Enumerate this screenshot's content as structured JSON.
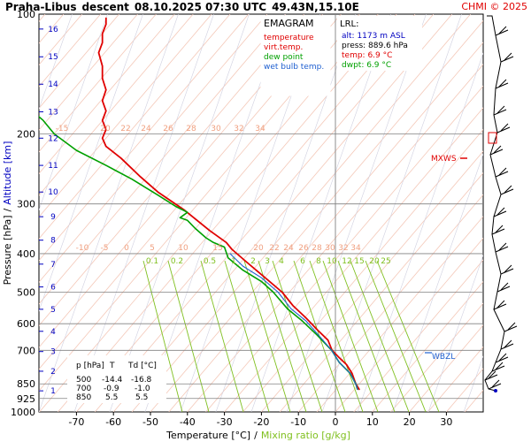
{
  "header": {
    "station": "Praha-Libus",
    "mode": "descent",
    "datetime": "08.10.2025 07:30 UTC",
    "coords": "49.43N,15.10E",
    "copyright": "CHMI © 2025"
  },
  "legend": {
    "title": "EMAGRAM",
    "items": [
      {
        "label": "temperature",
        "color": "#e00000"
      },
      {
        "label": "virt.temp.",
        "color": "#e00000"
      },
      {
        "label": "dew point",
        "color": "#00a000"
      },
      {
        "label": "wet bulb temp.",
        "color": "#2060d0"
      }
    ]
  },
  "lrl": {
    "title": "LRL:",
    "alt": "alt: 1173 m ASL",
    "press": "press: 889.6 hPa",
    "temp": "temp: 6.9 °C",
    "dwpt": "dwpt: 6.9 °C"
  },
  "table": {
    "headers": [
      "p [hPa]",
      "T",
      "Td [°C]"
    ],
    "rows": [
      [
        "500",
        "-14.4",
        "-16.8"
      ],
      [
        "700",
        "-0.9",
        "-1.0"
      ],
      [
        "850",
        "5.5",
        "5.5"
      ]
    ]
  },
  "markers": {
    "mxws": "MXWS",
    "wbzl": "WBZL"
  },
  "axes": {
    "xlabel": "Temperature [°C]",
    "xlabel_sep": "/",
    "xlabel2": "Mixing ratio [g/kg]",
    "ylabel": "Pressure [hPa]",
    "ylabel_sep": "/",
    "ylabel2": "Altitude [km]"
  },
  "colors": {
    "temperature": "#e00000",
    "dewpoint": "#00a000",
    "wetbulb": "#2060d0",
    "isotherm_label": "#f0a080",
    "mixing": "#80c020",
    "altitude": "#0000c0"
  },
  "chart_data": {
    "type": "line",
    "xlim": [
      -80,
      40
    ],
    "ylim": [
      1000,
      100
    ],
    "y_scale": "log",
    "pressure_ticks": [
      100,
      200,
      300,
      400,
      500,
      600,
      700,
      850,
      925,
      1000
    ],
    "temp_ticks": [
      -70,
      -60,
      -50,
      -40,
      -30,
      -20,
      -10,
      0,
      10,
      20,
      30
    ],
    "altitude_ticks": [
      {
        "km": "1",
        "p": 885
      },
      {
        "km": "2",
        "p": 790
      },
      {
        "km": "3",
        "p": 705
      },
      {
        "km": "4",
        "p": 627
      },
      {
        "km": "5",
        "p": 552
      },
      {
        "km": "6",
        "p": 485
      },
      {
        "km": "7",
        "p": 425
      },
      {
        "km": "8",
        "p": 370
      },
      {
        "km": "9",
        "p": 323
      },
      {
        "km": "10",
        "p": 280
      },
      {
        "km": "11",
        "p": 240
      },
      {
        "km": "12",
        "p": 205
      },
      {
        "km": "13",
        "p": 176
      },
      {
        "km": "14",
        "p": 150
      },
      {
        "km": "15",
        "p": 128
      },
      {
        "km": "16",
        "p": 109
      }
    ],
    "mixing_ratio_labels": [
      "0.1",
      "0.2",
      "0.5",
      "1",
      "2",
      "3",
      "4",
      "6",
      "8",
      "10",
      "12",
      "15",
      "20",
      "25"
    ],
    "series": [
      {
        "name": "temperature",
        "points": [
          [
            6.5,
            880
          ],
          [
            5.5,
            850
          ],
          [
            4.5,
            800
          ],
          [
            3,
            760
          ],
          [
            1,
            730
          ],
          [
            -0.9,
            700
          ],
          [
            -2,
            660
          ],
          [
            -5,
            620
          ],
          [
            -8,
            580
          ],
          [
            -11.5,
            540
          ],
          [
            -14.4,
            500
          ],
          [
            -19,
            460
          ],
          [
            -24,
            420
          ],
          [
            -28,
            390
          ],
          [
            -29.5,
            375
          ],
          [
            -34,
            350
          ],
          [
            -41,
            310
          ],
          [
            -48,
            280
          ],
          [
            -53,
            255
          ],
          [
            -58,
            230
          ],
          [
            -62,
            215
          ],
          [
            -63,
            205
          ],
          [
            -62,
            195
          ],
          [
            -63,
            185
          ],
          [
            -62,
            175
          ],
          [
            -63,
            165
          ],
          [
            -62,
            155
          ],
          [
            -63,
            145
          ],
          [
            -63,
            135
          ],
          [
            -64,
            125
          ],
          [
            -63,
            118
          ],
          [
            -63,
            112
          ],
          [
            -62,
            106
          ],
          [
            -62,
            102
          ]
        ]
      },
      {
        "name": "dew point",
        "points": [
          [
            6,
            880
          ],
          [
            5.5,
            850
          ],
          [
            4,
            800
          ],
          [
            1,
            750
          ],
          [
            -1,
            700
          ],
          [
            -5,
            640
          ],
          [
            -9,
            590
          ],
          [
            -13,
            550
          ],
          [
            -16.8,
            500
          ],
          [
            -20,
            470
          ],
          [
            -25,
            440
          ],
          [
            -29,
            410
          ],
          [
            -30,
            385
          ],
          [
            -33,
            375
          ],
          [
            -35,
            365
          ],
          [
            -38,
            345
          ],
          [
            -40,
            330
          ],
          [
            -42,
            325
          ],
          [
            -40,
            315
          ],
          [
            -43,
            305
          ],
          [
            -48,
            285
          ],
          [
            -55,
            260
          ],
          [
            -62,
            240
          ],
          [
            -70,
            220
          ],
          [
            -76,
            200
          ],
          [
            -79,
            185
          ],
          [
            -82,
            175
          ],
          [
            -84,
            165
          ],
          [
            -86,
            158
          ]
        ]
      },
      {
        "name": "wet bulb temp.",
        "points": [
          [
            6,
            880
          ],
          [
            5.5,
            850
          ],
          [
            4,
            800
          ],
          [
            1,
            750
          ],
          [
            -1,
            700
          ],
          [
            -4,
            650
          ],
          [
            -8,
            590
          ],
          [
            -12,
            550
          ],
          [
            -15.5,
            500
          ],
          [
            -20,
            460
          ],
          [
            -25,
            430
          ],
          [
            -28.5,
            400
          ]
        ]
      }
    ]
  }
}
